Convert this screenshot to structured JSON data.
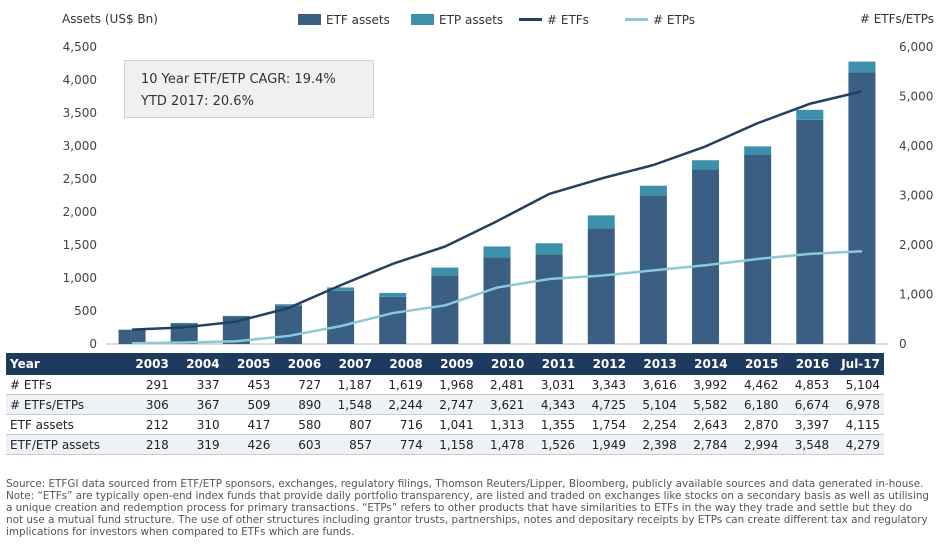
{
  "chart_data": {
    "type": "bar",
    "left_axis_title": "Assets (US$ Bn)",
    "right_axis_title": "# ETFs/ETPs",
    "ylim_left": [
      0,
      4500
    ],
    "ylim_right": [
      0,
      6000
    ],
    "left_ticks": [
      "0",
      "500",
      "1,000",
      "1,500",
      "2,000",
      "2,500",
      "3,000",
      "3,500",
      "4,000",
      "4,500"
    ],
    "right_ticks": [
      "0",
      "1,000",
      "2,000",
      "3,000",
      "4,000",
      "5,000",
      "6,000"
    ],
    "categories": [
      "2003",
      "2004",
      "2005",
      "2006",
      "2007",
      "2008",
      "2009",
      "2010",
      "2011",
      "2012",
      "2013",
      "2014",
      "2015",
      "2016",
      "Jul-17"
    ],
    "legend": [
      {
        "label": "ETF assets",
        "kind": "bar",
        "color": "#3b5f82"
      },
      {
        "label": "ETP assets",
        "kind": "bar",
        "color": "#3d90ac"
      },
      {
        "label": "# ETFs",
        "kind": "line",
        "color": "#24405f"
      },
      {
        "label": "# ETPs",
        "kind": "line",
        "color": "#8cc8d6"
      }
    ],
    "series": [
      {
        "name": "ETF assets",
        "kind": "stacked-bar",
        "axis": "left",
        "color": "#3b5f82",
        "values": [
          212,
          310,
          417,
          580,
          807,
          716,
          1041,
          1313,
          1355,
          1754,
          2254,
          2643,
          2870,
          3397,
          4115
        ]
      },
      {
        "name": "ETP assets",
        "kind": "stacked-bar",
        "axis": "left",
        "color": "#3d90ac",
        "values": [
          6,
          9,
          9,
          23,
          50,
          58,
          117,
          165,
          171,
          195,
          144,
          141,
          124,
          151,
          164
        ]
      },
      {
        "name": "# ETFs",
        "kind": "line",
        "axis": "right",
        "color": "#24405f",
        "values": [
          291,
          337,
          453,
          727,
          1187,
          1619,
          1968,
          2481,
          3031,
          3343,
          3616,
          3992,
          4462,
          4853,
          5104
        ]
      },
      {
        "name": "# ETPs",
        "kind": "line",
        "axis": "right",
        "color": "#8cc8d6",
        "values": [
          15,
          30,
          56,
          163,
          361,
          625,
          779,
          1140,
          1312,
          1382,
          1488,
          1590,
          1718,
          1821,
          1874
        ]
      }
    ]
  },
  "annotation": {
    "line1": "10 Year ETF/ETP CAGR: 19.4%",
    "line2": "YTD 2017: 20.6%"
  },
  "table": {
    "header": [
      "Year",
      "2003",
      "2004",
      "2005",
      "2006",
      "2007",
      "2008",
      "2009",
      "2010",
      "2011",
      "2012",
      "2013",
      "2014",
      "2015",
      "2016",
      "Jul-17"
    ],
    "rows": [
      [
        "# ETFs",
        "291",
        "337",
        "453",
        "727",
        "1,187",
        "1,619",
        "1,968",
        "2,481",
        "3,031",
        "3,343",
        "3,616",
        "3,992",
        "4,462",
        "4,853",
        "5,104"
      ],
      [
        "# ETFs/ETPs",
        "306",
        "367",
        "509",
        "890",
        "1,548",
        "2,244",
        "2,747",
        "3,621",
        "4,343",
        "4,725",
        "5,104",
        "5,582",
        "6,180",
        "6,674",
        "6,978"
      ],
      [
        "ETF assets",
        "212",
        "310",
        "417",
        "580",
        "807",
        "716",
        "1,041",
        "1,313",
        "1,355",
        "1,754",
        "2,254",
        "2,643",
        "2,870",
        "3,397",
        "4,115"
      ],
      [
        "ETF/ETP assets",
        "218",
        "319",
        "426",
        "603",
        "857",
        "774",
        "1,158",
        "1,478",
        "1,526",
        "1,949",
        "2,398",
        "2,784",
        "2,994",
        "3,548",
        "4,279"
      ]
    ]
  },
  "footnotes": {
    "source": "Source: ETFGI data sourced from ETF/ETP sponsors, exchanges, regulatory filings, Thomson Reuters/Lipper, Bloomberg, publicly available sources and data generated in-house.",
    "note": "Note: “ETFs” are typically open-end index funds that provide daily portfolio transparency, are listed and traded on exchanges like stocks on a secondary basis as well as utilising a unique creation and redemption process for primary transactions. “ETPs” refers to other products that have similarities to ETFs in the way they trade and settle but they do not use a mutual fund structure. The use of other structures including grantor trusts, partnerships, notes and depositary receipts by ETPs can create different tax and regulatory implications for investors when compared to ETFs which are funds."
  }
}
